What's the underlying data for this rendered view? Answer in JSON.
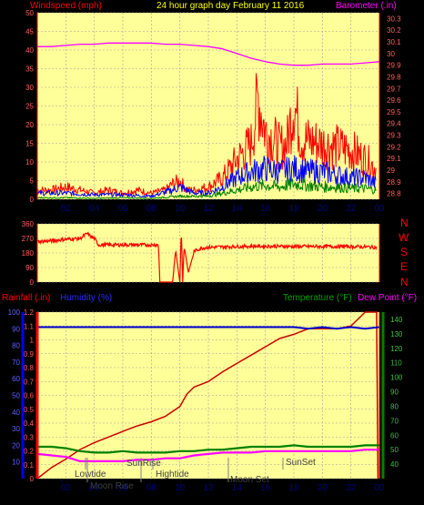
{
  "header": {
    "windspeed_label": "Windspeed (mph)",
    "title": "24 hour graph day   February 11 2016",
    "barometer_label": "Barometer (.in)"
  },
  "compass_labels": [
    "N",
    "W",
    "S",
    "E",
    "N"
  ],
  "bottom_header": {
    "rainfall_label": "Rainfall (.in)",
    "humidity_label": "Humidity (%)",
    "temperature_label": "Temperature (°F)",
    "dewpoint_label": "Dew Point (°F)"
  },
  "colors": {
    "plot_bg": "#ffff99",
    "wind_gust": "#ff0000",
    "wind_avg": "#0000ff",
    "wind_low": "#008000",
    "barometer": "#ff00ff",
    "direction": "#ff0000",
    "rainfall": "#cc0000",
    "humidity": "#0000cc",
    "temperature": "#008000",
    "dewpoint": "#ff00ff",
    "axis_red": "#ff0000",
    "header_yellow": "#ffff00"
  },
  "x_ticks": [
    "02",
    "04",
    "06",
    "08",
    "10",
    "12",
    "14",
    "16",
    "18",
    "20",
    "22",
    "00"
  ],
  "astro_labels": {
    "lowtide": "Lowtide",
    "moonrise": "Moon Rise",
    "sunrise": "SunRise",
    "hightide": "Hightide",
    "moonset": "Moon Set",
    "sunset": "SunSet"
  },
  "chart_data": [
    {
      "type": "line",
      "name": "wind-and-barometer",
      "x_range_hours": [
        0,
        24
      ],
      "y_left": {
        "ticks": [
          "0",
          "5",
          "10",
          "15",
          "20",
          "25",
          "30",
          "35",
          "40",
          "45",
          "50"
        ],
        "range": [
          0,
          50
        ]
      },
      "y_right": {
        "ticks": [
          "28.8",
          "28.9",
          "29",
          "29.1",
          "29.2",
          "29.3",
          "29.4",
          "29.5",
          "29.6",
          "29.7",
          "29.8",
          "29.9",
          "30",
          "30.1",
          "30.2",
          "30.3"
        ],
        "range": [
          28.75,
          30.35
        ]
      },
      "series": [
        {
          "name": "Windspeed (mph)",
          "axis": "left",
          "style": "gust",
          "x": [
            0,
            1,
            2,
            3,
            4,
            5,
            6,
            7,
            8,
            9,
            9.5,
            10,
            10.5,
            11,
            12,
            13,
            14,
            15,
            15.5,
            16,
            16.5,
            17,
            17.5,
            18,
            18.5,
            19,
            20,
            21,
            22,
            23,
            23.8
          ],
          "y": [
            3,
            3,
            4,
            3,
            2,
            3,
            2,
            3,
            2,
            3,
            5,
            6,
            3,
            3,
            4,
            7,
            13,
            18,
            33,
            22,
            20,
            17,
            18,
            32,
            20,
            19,
            18,
            17,
            16,
            13,
            10
          ]
        },
        {
          "name": "Average",
          "axis": "left",
          "style": "avg",
          "x": [
            0,
            2,
            4,
            6,
            8,
            9.5,
            10,
            11,
            12,
            13,
            14,
            15,
            16,
            17,
            18,
            19,
            20,
            21,
            22,
            23,
            23.8
          ],
          "y": [
            2,
            2,
            1.5,
            1.5,
            1,
            3,
            4,
            2,
            2,
            4,
            7,
            9,
            10,
            9,
            10,
            9,
            9,
            8,
            7,
            7,
            5
          ]
        },
        {
          "name": "Low",
          "axis": "left",
          "style": "low",
          "x": [
            0,
            2,
            4,
            6,
            8,
            10,
            12,
            13,
            14,
            15,
            16,
            17,
            18,
            19,
            20,
            21,
            22,
            23,
            23.8
          ],
          "y": [
            0.5,
            0.5,
            0.3,
            0.5,
            0.3,
            1,
            1,
            2,
            3,
            4,
            4.5,
            4,
            5,
            4.5,
            4,
            4,
            3.5,
            3.5,
            3
          ]
        },
        {
          "name": "Barometer (.in)",
          "axis": "right",
          "x": [
            0,
            1,
            2,
            3,
            4,
            5,
            6,
            7,
            8,
            9,
            10,
            11,
            12,
            13,
            14,
            15,
            16,
            17,
            18,
            19,
            20,
            21,
            22,
            23,
            24
          ],
          "y": [
            30.06,
            30.06,
            30.07,
            30.08,
            30.08,
            30.09,
            30.09,
            30.09,
            30.09,
            30.08,
            30.08,
            30.07,
            30.06,
            30.04,
            30.0,
            29.96,
            29.93,
            29.91,
            29.9,
            29.9,
            29.91,
            29.91,
            29.91,
            29.92,
            29.93
          ]
        }
      ]
    },
    {
      "type": "line",
      "name": "wind-direction",
      "x_range_hours": [
        0,
        24
      ],
      "y_left": {
        "ticks": [
          "360",
          "270",
          "180",
          "90",
          "0"
        ],
        "range": [
          0,
          360
        ]
      },
      "series": [
        {
          "name": "Direction",
          "x": [
            0,
            1,
            2,
            3,
            3.5,
            3.7,
            4,
            4.3,
            6,
            7,
            8,
            8.5,
            8.6,
            9,
            9.2,
            9.5,
            9.7,
            10,
            10.1,
            10.2,
            10.3,
            10.6,
            11,
            11.5,
            12,
            14,
            16,
            18,
            20,
            22,
            23.8
          ],
          "y": [
            250,
            255,
            265,
            270,
            300,
            285,
            270,
            230,
            230,
            230,
            230,
            230,
            0,
            0,
            0,
            0,
            200,
            0,
            340,
            0,
            220,
            60,
            190,
            210,
            215,
            220,
            222,
            220,
            220,
            220,
            215
          ]
        }
      ]
    },
    {
      "type": "line",
      "name": "rain-humidity-temperature",
      "x_range_hours": [
        0,
        24
      ],
      "y_left": {
        "ticks": [
          "0",
          "0.1",
          "0.2",
          "0.3",
          "0.4",
          "0.5",
          "0.6",
          "0.7",
          "0.8",
          "0.9",
          "1",
          "1.1",
          "1.2"
        ],
        "range": [
          0,
          1.2
        ]
      },
      "y_humidity": {
        "ticks": [
          "10",
          "20",
          "30",
          "40",
          "50",
          "60",
          "70",
          "80",
          "90",
          "100"
        ],
        "range": [
          0,
          100
        ]
      },
      "y_right": {
        "ticks": [
          "40",
          "50",
          "60",
          "70",
          "80",
          "90",
          "100",
          "110",
          "120",
          "130",
          "140"
        ],
        "range": [
          30,
          145
        ]
      },
      "series": [
        {
          "name": "Rainfall (.in)",
          "axis": "left",
          "x": [
            0,
            1,
            2,
            3,
            4,
            5,
            6,
            7,
            8,
            9,
            10,
            10.5,
            11,
            12,
            13,
            14,
            15,
            16,
            17,
            18,
            19,
            20,
            21,
            22,
            23,
            23.8,
            23.9
          ],
          "y": [
            0,
            0.08,
            0.14,
            0.21,
            0.26,
            0.3,
            0.34,
            0.38,
            0.41,
            0.45,
            0.52,
            0.61,
            0.66,
            0.7,
            0.77,
            0.83,
            0.89,
            0.95,
            1.01,
            1.04,
            1.08,
            1.08,
            1.08,
            1.1,
            1.2,
            1.2,
            0
          ]
        },
        {
          "name": "Humidity (%)",
          "axis": "humidity",
          "x": [
            0,
            2,
            4,
            6,
            8,
            10,
            12,
            14,
            16,
            18,
            19,
            20,
            21,
            22,
            23,
            24
          ],
          "y": [
            91,
            91,
            91,
            91,
            91,
            91,
            91,
            91,
            91,
            91,
            90,
            91,
            90,
            91,
            90,
            91
          ]
        },
        {
          "name": "Temperature (°F)",
          "axis": "right",
          "x": [
            0,
            1,
            2,
            3,
            4,
            5,
            6,
            7,
            8,
            9,
            10,
            11,
            12,
            13,
            14,
            15,
            16,
            17,
            18,
            19,
            20,
            21,
            22,
            23,
            24
          ],
          "y": [
            52,
            52,
            51,
            49,
            48,
            48,
            49,
            48,
            48,
            48,
            49,
            49,
            50,
            50,
            51,
            52,
            52,
            52,
            53,
            52,
            52,
            52,
            52,
            53,
            53
          ]
        },
        {
          "name": "Dew Point (°F)",
          "axis": "right",
          "x": [
            0,
            1,
            2,
            3,
            4,
            5,
            6,
            7,
            8,
            9,
            10,
            11,
            12,
            13,
            14,
            15,
            16,
            17,
            18,
            19,
            20,
            21,
            22,
            23,
            24
          ],
          "y": [
            47,
            46,
            45,
            42,
            42,
            42,
            42,
            43,
            43,
            44,
            44,
            46,
            47,
            48,
            48,
            48,
            49,
            49,
            49,
            49,
            49,
            49,
            49,
            50,
            50
          ]
        }
      ]
    }
  ]
}
